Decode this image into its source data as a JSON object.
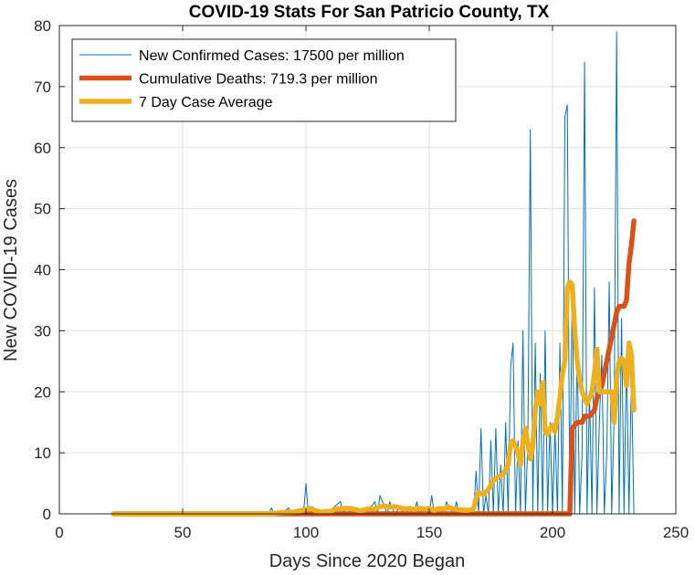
{
  "chart_data": {
    "type": "line",
    "title": "COVID-19 Stats For San Patricio County, TX",
    "xlabel": "Days Since 2020 Began",
    "ylabel": "New COVID-19 Cases",
    "xlim": [
      0,
      250
    ],
    "ylim": [
      0,
      80
    ],
    "xticks": [
      0,
      50,
      100,
      150,
      200,
      250
    ],
    "yticks": [
      0,
      10,
      20,
      30,
      40,
      50,
      60,
      70,
      80
    ],
    "grid": true,
    "legend_position": "top-left",
    "series": [
      {
        "name": "New Confirmed Cases: 17500 per million",
        "color": "#0072BD",
        "line_weight": "thin",
        "x": [
          22,
          85,
          86,
          87,
          90,
          93,
          94,
          96,
          98,
          99,
          100,
          101,
          104,
          108,
          111,
          114,
          115,
          116,
          119,
          121,
          123,
          126,
          128,
          129,
          130,
          132,
          133,
          134,
          136,
          138,
          140,
          142,
          144,
          145,
          146,
          148,
          150,
          151,
          152,
          154,
          156,
          157,
          158,
          160,
          161,
          162,
          164,
          166,
          168,
          169,
          170,
          171,
          172,
          173,
          174,
          175,
          176,
          177,
          178,
          179,
          180,
          181,
          182,
          183,
          184,
          185,
          186,
          187,
          188,
          189,
          190,
          191,
          192,
          193,
          194,
          195,
          196,
          197,
          198,
          199,
          200,
          201,
          202,
          203,
          204,
          205,
          206,
          207,
          208,
          209,
          210,
          211,
          212,
          213,
          214,
          215,
          216,
          217,
          218,
          219,
          220,
          221,
          222,
          223,
          224,
          225,
          226,
          227,
          228,
          229,
          230,
          231,
          232,
          233
        ],
        "y": [
          0,
          0,
          1,
          0,
          0,
          1,
          0,
          0,
          0,
          0,
          5,
          0,
          0,
          0,
          1,
          2,
          0,
          1,
          0,
          1,
          0,
          1,
          2,
          0,
          3,
          1,
          0,
          2,
          0,
          1,
          0,
          1,
          0,
          2,
          0,
          1,
          0,
          3,
          0,
          1,
          0,
          2,
          1,
          0,
          2,
          0,
          1,
          0,
          0,
          7,
          0,
          14,
          0,
          3,
          0,
          12,
          0,
          14,
          0,
          8,
          0,
          15,
          0,
          24,
          28,
          0,
          12,
          0,
          30,
          0,
          12,
          63,
          0,
          28,
          0,
          23,
          0,
          30,
          0,
          15,
          0,
          14,
          0,
          28,
          0,
          65,
          67,
          0,
          38,
          0,
          28,
          0,
          10,
          74,
          0,
          20,
          0,
          37,
          0,
          15,
          26,
          0,
          10,
          38,
          0,
          16,
          79,
          0,
          32,
          0,
          26,
          0,
          23,
          0
        ]
      },
      {
        "name": "Cumulative Deaths: 719.3 per million",
        "color": "#D95319",
        "line_weight": "thick",
        "x": [
          22,
          207,
          208,
          210,
          212,
          213,
          215,
          217,
          218,
          220,
          221,
          222,
          223,
          224,
          225,
          226,
          227,
          228,
          229,
          230,
          231,
          232,
          233
        ],
        "y": [
          0,
          0,
          14,
          15,
          15,
          16,
          16,
          17,
          19,
          21,
          23,
          25,
          27,
          29,
          31,
          33,
          34,
          34,
          34,
          35,
          41,
          44,
          48
        ]
      },
      {
        "name": "7 Day Case Average",
        "color": "#EDB120",
        "line_weight": "thick",
        "x": [
          22,
          85,
          90,
          95,
          100,
          102,
          104,
          106,
          108,
          110,
          112,
          115,
          118,
          120,
          122,
          125,
          128,
          130,
          132,
          134,
          136,
          138,
          140,
          142,
          144,
          146,
          148,
          150,
          152,
          154,
          156,
          158,
          160,
          162,
          164,
          166,
          168,
          169,
          170,
          172,
          174,
          176,
          178,
          180,
          182,
          183,
          184,
          185,
          186,
          187,
          188,
          189,
          190,
          191,
          192,
          193,
          194,
          195,
          196,
          197,
          198,
          199,
          200,
          201,
          202,
          203,
          204,
          205,
          206,
          207,
          208,
          209,
          210,
          211,
          212,
          213,
          214,
          215,
          216,
          217,
          218,
          219,
          220,
          221,
          222,
          223,
          224,
          225,
          226,
          227,
          228,
          229,
          230,
          231,
          232,
          233
        ],
        "y": [
          0,
          0,
          0.2,
          0.3,
          0.7,
          0.9,
          0.5,
          0.3,
          0.4,
          0.4,
          0.8,
          0.9,
          0.9,
          0.7,
          0.5,
          0.8,
          0.8,
          1.2,
          1.3,
          1.1,
          1.2,
          1.0,
          0.8,
          0.9,
          0.7,
          0.9,
          0.8,
          0.9,
          0.6,
          0.9,
          0.8,
          1.1,
          0.8,
          0.7,
          0.6,
          0.6,
          0.8,
          2.5,
          3.5,
          3.2,
          4.0,
          5.5,
          6.0,
          6.5,
          8.0,
          11.5,
          12.0,
          11.0,
          10.0,
          8.0,
          12.0,
          14.0,
          11.5,
          9.0,
          11.0,
          17.0,
          20.0,
          18.0,
          21.5,
          13.5,
          13.0,
          14.0,
          14.5,
          13.5,
          16.0,
          19.0,
          23.0,
          25.0,
          37.0,
          38.0,
          37.5,
          30.0,
          25.0,
          22.0,
          20.0,
          19.0,
          18.0,
          19.0,
          20.0,
          23.0,
          27.0,
          20.0,
          20.0,
          20.0,
          20.0,
          20.0,
          20.0,
          15.0,
          22.0,
          25.0,
          25.5,
          25.0,
          21.0,
          28.0,
          26.0,
          17.0
        ]
      }
    ]
  }
}
